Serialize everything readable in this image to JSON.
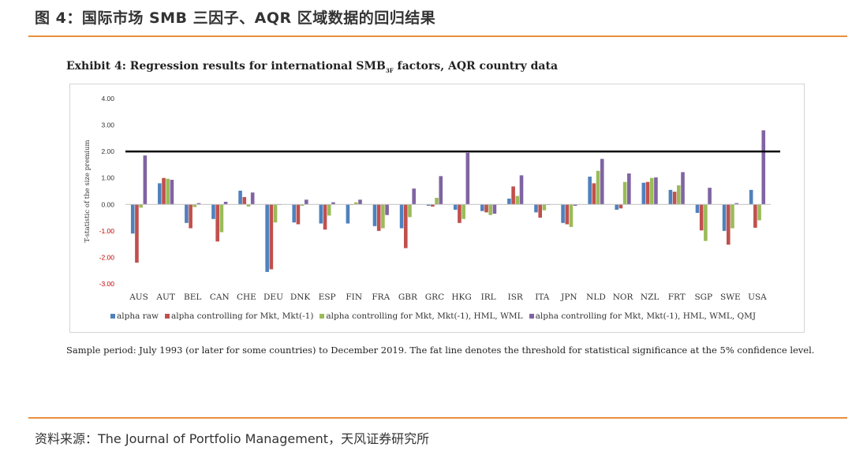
{
  "figure_title": "图 4：国际市场 SMB 三因子、AQR 区域数据的回归结果",
  "exhibit": {
    "title_main": "Exhibit 4: Regression results for international SMB",
    "title_sub": "3F",
    "title_tail": " factors, AQR country data"
  },
  "note": "Sample period: July 1993 (or later for some countries) to December 2019. The fat line denotes the threshold for statistical significance at the 5% confidence level.",
  "source": "资料来源：The Journal of Portfolio Management，天风证券研究所",
  "chart_data": {
    "type": "bar",
    "ylabel": "T-statistic of the size premium",
    "ylim": [
      -3.0,
      4.0
    ],
    "yticks": [
      "4.00",
      "3.00",
      "2.00",
      "1.00",
      "0.00",
      "-1.00",
      "-2.00",
      "-3.00"
    ],
    "ytick_values": [
      4,
      3,
      2,
      1,
      0,
      -1,
      -2,
      -3
    ],
    "threshold": 2.0,
    "grid": false,
    "legend_position": "bottom",
    "categories": [
      "AUS",
      "AUT",
      "BEL",
      "CAN",
      "CHE",
      "DEU",
      "DNK",
      "ESP",
      "FIN",
      "FRA",
      "GBR",
      "GRC",
      "HKG",
      "IRL",
      "ISR",
      "ITA",
      "JPN",
      "NLD",
      "NOR",
      "NZL",
      "FRT",
      "SGP",
      "SWE",
      "USA"
    ],
    "series": [
      {
        "name": "alpha raw",
        "color": "#4f81bd",
        "values": [
          -1.1,
          0.8,
          -0.7,
          -0.55,
          0.52,
          -2.55,
          -0.68,
          -0.72,
          -0.72,
          -0.82,
          -0.9,
          -0.05,
          -0.2,
          -0.25,
          0.22,
          -0.3,
          -0.7,
          1.05,
          -0.2,
          0.82,
          0.55,
          -0.32,
          -1.0,
          0.55
        ]
      },
      {
        "name": "alpha controlling for Mkt, Mkt(-1)",
        "color": "#c0504d",
        "values": [
          -2.2,
          1.0,
          -0.9,
          -1.4,
          0.28,
          -2.45,
          -0.75,
          -0.95,
          0.0,
          -1.0,
          -1.65,
          -0.08,
          -0.7,
          -0.3,
          0.68,
          -0.5,
          -0.75,
          0.8,
          -0.15,
          0.85,
          0.48,
          -0.98,
          -1.52,
          -0.88
        ]
      },
      {
        "name": "alpha controlling for Mkt, Mkt(-1), HML, WML",
        "color": "#9bbb59",
        "values": [
          -0.12,
          0.97,
          -0.1,
          -1.05,
          -0.08,
          -0.68,
          -0.05,
          -0.42,
          0.08,
          -0.9,
          -0.48,
          0.25,
          -0.55,
          -0.4,
          0.32,
          -0.22,
          -0.85,
          1.27,
          0.85,
          1.0,
          0.72,
          -1.38,
          -0.9,
          -0.6
        ]
      },
      {
        "name": "alpha controlling for Mkt, Mkt(-1), HML, WML, QMJ",
        "color": "#8064a2",
        "values": [
          1.85,
          0.93,
          0.05,
          0.1,
          0.45,
          0.0,
          0.18,
          0.08,
          0.18,
          -0.4,
          0.6,
          1.07,
          1.95,
          -0.35,
          1.1,
          0.0,
          -0.05,
          1.72,
          1.17,
          1.02,
          1.22,
          0.63,
          0.05,
          2.8
        ]
      }
    ]
  }
}
